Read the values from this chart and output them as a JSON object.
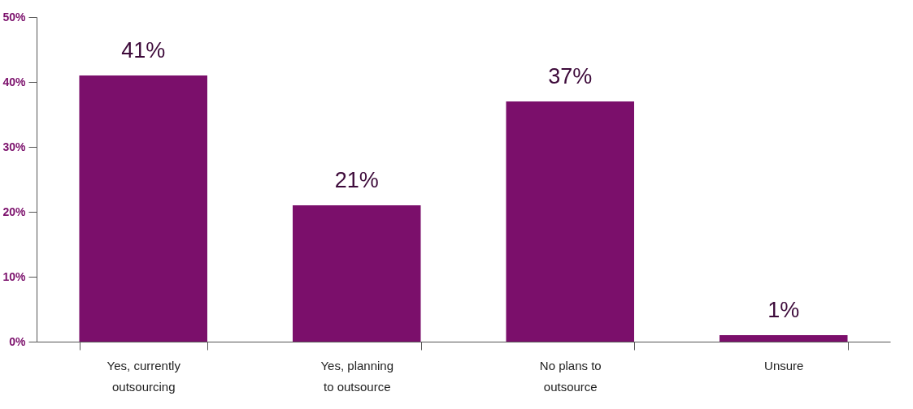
{
  "chart_data": {
    "type": "bar",
    "categories": [
      "Yes, currently\noutsourcing",
      "Yes, planning\nto outsource",
      "No plans to\noutsource",
      "Unsure"
    ],
    "values": [
      41,
      21,
      37,
      1
    ],
    "value_labels": [
      "41%",
      "21%",
      "37%",
      "1%"
    ],
    "color": "#7b0f6b",
    "ylim": [
      0,
      50
    ],
    "yticks": [
      {
        "value": 0,
        "label": "0%"
      },
      {
        "value": 10,
        "label": "10%"
      },
      {
        "value": 20,
        "label": "20%"
      },
      {
        "value": 30,
        "label": "30%"
      },
      {
        "value": 40,
        "label": "40%"
      },
      {
        "value": 50,
        "label": "50%"
      }
    ],
    "grid": false
  }
}
